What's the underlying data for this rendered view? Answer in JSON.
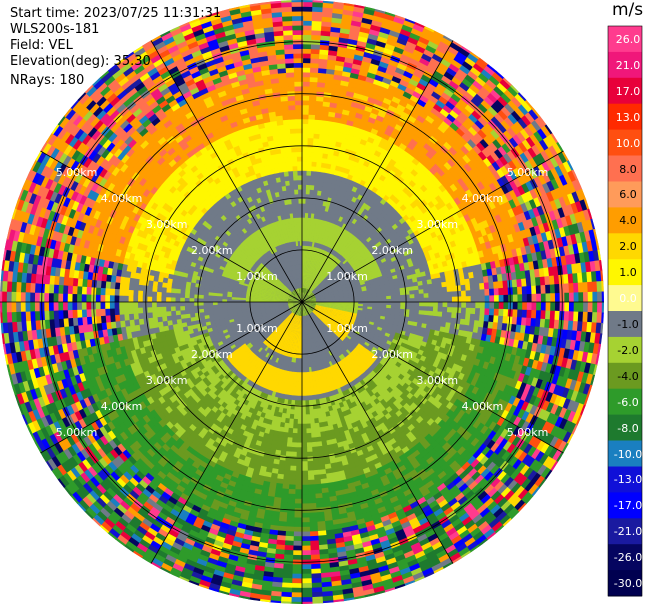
{
  "info": {
    "start_time": "Start time: 2023/07/25 11:31:31",
    "station": "WLS200s-181",
    "field": "Field: VEL",
    "elevation": "Elevation(deg): 35.30",
    "nrays": "NRays: 180"
  },
  "chart_data": {
    "type": "heatmap",
    "subtype": "polar-ppi",
    "field": "VEL",
    "units": "m/s",
    "range_rings_km": [
      1,
      2,
      3,
      4,
      5
    ],
    "ring_labels": [
      "1.00km",
      "2.00km",
      "3.00km",
      "4.00km",
      "5.00km"
    ],
    "azimuth_spokes_deg": [
      0,
      30,
      60,
      90,
      120,
      150,
      180,
      210,
      240,
      270,
      300,
      330
    ],
    "max_range_km": 5.8,
    "nrays": 180,
    "colorbar": {
      "ticks": [
        "26.0",
        "21.0",
        "17.0",
        "13.0",
        "10.0",
        "8.0",
        "6.0",
        "4.0",
        "2.0",
        "1.0",
        "0.0",
        "-1.0",
        "-2.0",
        "-4.0",
        "-6.0",
        "-8.0",
        "-10.0",
        "-13.0",
        "-17.0",
        "-21.0",
        "-26.0",
        "-30.0"
      ],
      "colors": [
        "#ff3b8e",
        "#f0177a",
        "#e8003a",
        "#ff2a00",
        "#ff4f10",
        "#ff7050",
        "#ff9b5a",
        "#ff9d00",
        "#ffd800",
        "#fff700",
        "#fffa90",
        "#707a88",
        "#a6d232",
        "#6b9a20",
        "#2e9b2a",
        "#1e7a2e",
        "#1a7fc0",
        "#1010d8",
        "#0000ff",
        "#1a1aa0",
        "#050560",
        "#000050"
      ]
    },
    "velocity_pattern": {
      "near_range_km": [
        {
          "range": [
            0.0,
            0.35
          ],
          "dominant": "0.0 to 2.0"
        },
        {
          "range": [
            0.35,
            1.0
          ],
          "dominant": "-2.0 to 4.0 (alternating)"
        },
        {
          "range": [
            1.0,
            2.5
          ],
          "dominant": "0.0 to -1.0"
        },
        {
          "range": [
            2.5,
            3.5
          ],
          "dominant": "2.0 to 4.0 north, -2.0 to -6.0 south"
        },
        {
          "range": [
            3.5,
            4.5
          ],
          "dominant": "6.0 to 8.0 north, -6.0 to -8.0 south"
        },
        {
          "range": [
            4.5,
            5.8
          ],
          "dominant": "noise (mixed)"
        }
      ]
    }
  }
}
